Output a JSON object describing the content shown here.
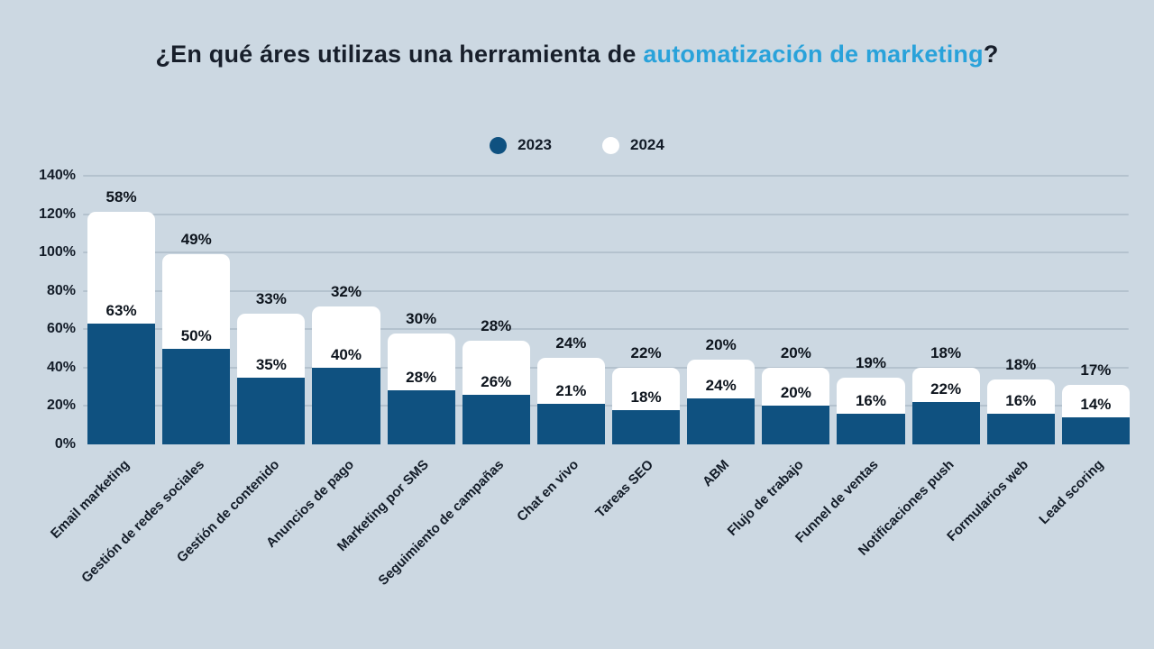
{
  "title": {
    "prefix": "¿En qué áres utilizas una herramienta de ",
    "highlight": "automatización de marketing",
    "suffix": "?"
  },
  "legend": {
    "items": [
      {
        "label": "2023",
        "swatch": "#0f5180"
      },
      {
        "label": "2024",
        "swatch": "#ffffff"
      }
    ]
  },
  "colors": {
    "background": "#ccd8e2",
    "bar_2023": "#0f5180",
    "bar_2024": "#ffffff",
    "title_dark": "#181f2b",
    "title_accent": "#29a2da",
    "gridline": "#b4c2ce",
    "value_text": "#0d141d",
    "axis_text": "#131c28"
  },
  "chart_data": {
    "type": "bar",
    "stacked": true,
    "categories": [
      "Email marketing",
      "Gestión de redes sociales",
      "Gestión de contenido",
      "Anuncios de pago",
      "Marketing por SMS",
      "Seguimiento de campañas",
      "Chat en vivo",
      "Tareas SEO",
      "ABM",
      "Flujo de trabajo",
      "Funnel de ventas",
      "Notificaciones push",
      "Formularios web",
      "Lead scoring"
    ],
    "series": [
      {
        "name": "2023",
        "color": "#0f5180",
        "values": [
          63,
          50,
          35,
          40,
          28,
          26,
          21,
          18,
          24,
          20,
          16,
          22,
          16,
          14
        ]
      },
      {
        "name": "2024",
        "color": "#ffffff",
        "values": [
          58,
          49,
          33,
          32,
          30,
          28,
          24,
          22,
          20,
          20,
          19,
          18,
          18,
          17
        ]
      }
    ],
    "y_ticks": [
      0,
      20,
      40,
      60,
      80,
      100,
      120,
      140
    ],
    "y_tick_labels": [
      "0%",
      "20%",
      "40%",
      "60%",
      "80%",
      "100%",
      "120%",
      "140%"
    ],
    "ylim": [
      0,
      140
    ],
    "grid": true,
    "legend_position": "top-center",
    "value_label_format": "{v}%"
  }
}
